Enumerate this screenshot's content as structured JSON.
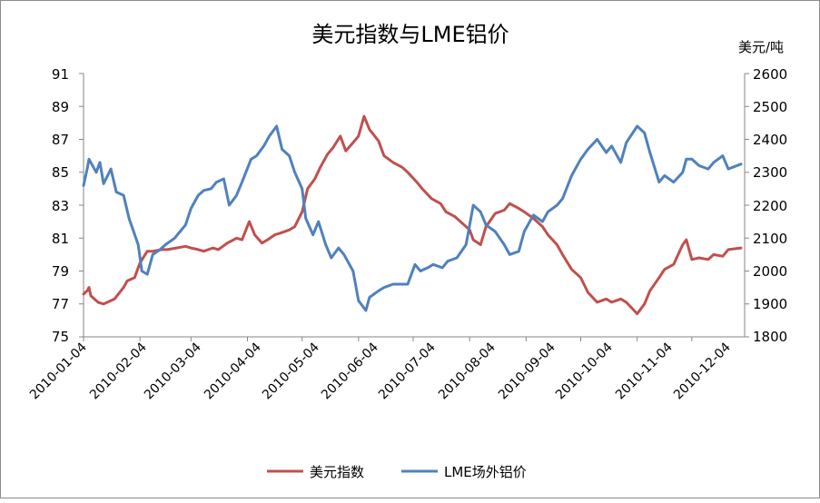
{
  "chart_data": {
    "type": "line",
    "title": "美元指数与LME铝价",
    "y2_unit_label": "美元/吨",
    "y_ticks": [
      "91",
      "89",
      "87",
      "85",
      "83",
      "81",
      "79",
      "77",
      "75"
    ],
    "y2_ticks": [
      "2600",
      "2500",
      "2400",
      "2300",
      "2200",
      "2100",
      "2000",
      "1900",
      "1800"
    ],
    "x_ticks": [
      "2010-01-04",
      "2010-02-04",
      "2010-03-04",
      "2010-04-04",
      "2010-05-04",
      "2010-06-04",
      "2010-07-04",
      "2010-08-04",
      "2010-09-04",
      "2010-10-04",
      "2010-11-04",
      "2010-12-04"
    ],
    "ylim": [
      75,
      91
    ],
    "y2lim": [
      1800,
      2600
    ],
    "grid": false,
    "legend_position": "bottom",
    "series": [
      {
        "name": "美元指数",
        "axis": "left",
        "color": "#c0504d",
        "values": [
          [
            "2010-01-04",
            77.6
          ],
          [
            "2010-01-06",
            77.8
          ],
          [
            "2010-01-07",
            78.0
          ],
          [
            "2010-01-08",
            77.5
          ],
          [
            "2010-01-12",
            77.1
          ],
          [
            "2010-01-15",
            77.0
          ],
          [
            "2010-01-19",
            77.2
          ],
          [
            "2010-01-21",
            77.3
          ],
          [
            "2010-01-26",
            78.0
          ],
          [
            "2010-01-28",
            78.4
          ],
          [
            "2010-02-01",
            78.6
          ],
          [
            "2010-02-04",
            79.5
          ],
          [
            "2010-02-08",
            80.2
          ],
          [
            "2010-02-11",
            80.2
          ],
          [
            "2010-02-16",
            80.3
          ],
          [
            "2010-02-19",
            80.3
          ],
          [
            "2010-02-24",
            80.4
          ],
          [
            "2010-03-01",
            80.5
          ],
          [
            "2010-03-04",
            80.4
          ],
          [
            "2010-03-08",
            80.3
          ],
          [
            "2010-03-11",
            80.2
          ],
          [
            "2010-03-16",
            80.4
          ],
          [
            "2010-03-19",
            80.3
          ],
          [
            "2010-03-24",
            80.7
          ],
          [
            "2010-03-29",
            81.0
          ],
          [
            "2010-04-01",
            80.9
          ],
          [
            "2010-04-05",
            82.0
          ],
          [
            "2010-04-08",
            81.2
          ],
          [
            "2010-04-12",
            80.7
          ],
          [
            "2010-04-15",
            80.9
          ],
          [
            "2010-04-19",
            81.2
          ],
          [
            "2010-04-22",
            81.3
          ],
          [
            "2010-04-27",
            81.5
          ],
          [
            "2010-04-30",
            81.7
          ],
          [
            "2010-05-04",
            82.6
          ],
          [
            "2010-05-07",
            84.0
          ],
          [
            "2010-05-11",
            84.6
          ],
          [
            "2010-05-14",
            85.3
          ],
          [
            "2010-05-18",
            86.1
          ],
          [
            "2010-05-21",
            86.5
          ],
          [
            "2010-05-25",
            87.2
          ],
          [
            "2010-05-28",
            86.3
          ],
          [
            "2010-06-01",
            86.8
          ],
          [
            "2010-06-04",
            87.2
          ],
          [
            "2010-06-07",
            88.4
          ],
          [
            "2010-06-10",
            87.6
          ],
          [
            "2010-06-15",
            86.9
          ],
          [
            "2010-06-18",
            86.0
          ],
          [
            "2010-06-23",
            85.6
          ],
          [
            "2010-06-28",
            85.3
          ],
          [
            "2010-07-01",
            85.0
          ],
          [
            "2010-07-06",
            84.4
          ],
          [
            "2010-07-09",
            84.0
          ],
          [
            "2010-07-14",
            83.4
          ],
          [
            "2010-07-19",
            83.1
          ],
          [
            "2010-07-22",
            82.6
          ],
          [
            "2010-07-27",
            82.3
          ],
          [
            "2010-07-30",
            82.0
          ],
          [
            "2010-08-04",
            81.5
          ],
          [
            "2010-08-06",
            80.9
          ],
          [
            "2010-08-10",
            80.6
          ],
          [
            "2010-08-13",
            81.7
          ],
          [
            "2010-08-18",
            82.5
          ],
          [
            "2010-08-23",
            82.7
          ],
          [
            "2010-08-26",
            83.1
          ],
          [
            "2010-08-31",
            82.8
          ],
          [
            "2010-09-03",
            82.6
          ],
          [
            "2010-09-08",
            82.2
          ],
          [
            "2010-09-13",
            81.7
          ],
          [
            "2010-09-16",
            81.2
          ],
          [
            "2010-09-21",
            80.6
          ],
          [
            "2010-09-24",
            80.0
          ],
          [
            "2010-09-29",
            79.1
          ],
          [
            "2010-10-04",
            78.6
          ],
          [
            "2010-10-08",
            77.7
          ],
          [
            "2010-10-13",
            77.1
          ],
          [
            "2010-10-18",
            77.3
          ],
          [
            "2010-10-21",
            77.1
          ],
          [
            "2010-10-26",
            77.3
          ],
          [
            "2010-10-29",
            77.1
          ],
          [
            "2010-11-04",
            76.4
          ],
          [
            "2010-11-08",
            77.0
          ],
          [
            "2010-11-11",
            77.8
          ],
          [
            "2010-11-16",
            78.6
          ],
          [
            "2010-11-19",
            79.1
          ],
          [
            "2010-11-24",
            79.4
          ],
          [
            "2010-11-29",
            80.6
          ],
          [
            "2010-12-01",
            80.9
          ],
          [
            "2010-12-04",
            79.7
          ],
          [
            "2010-12-08",
            79.8
          ],
          [
            "2010-12-13",
            79.7
          ],
          [
            "2010-12-16",
            80.0
          ],
          [
            "2010-12-21",
            79.9
          ],
          [
            "2010-12-24",
            80.3
          ],
          [
            "2010-12-31",
            80.4
          ]
        ]
      },
      {
        "name": "LME场外铝价",
        "axis": "right",
        "color": "#4f81bd",
        "values": [
          [
            "2010-01-04",
            2260
          ],
          [
            "2010-01-06",
            2310
          ],
          [
            "2010-01-07",
            2340
          ],
          [
            "2010-01-11",
            2300
          ],
          [
            "2010-01-13",
            2330
          ],
          [
            "2010-01-15",
            2265
          ],
          [
            "2010-01-19",
            2310
          ],
          [
            "2010-01-22",
            2240
          ],
          [
            "2010-01-26",
            2230
          ],
          [
            "2010-01-29",
            2160
          ],
          [
            "2010-02-03",
            2080
          ],
          [
            "2010-02-05",
            2000
          ],
          [
            "2010-02-08",
            1990
          ],
          [
            "2010-02-11",
            2050
          ],
          [
            "2010-02-15",
            2065
          ],
          [
            "2010-02-18",
            2080
          ],
          [
            "2010-02-23",
            2100
          ],
          [
            "2010-02-26",
            2120
          ],
          [
            "2010-03-01",
            2140
          ],
          [
            "2010-03-04",
            2190
          ],
          [
            "2010-03-08",
            2230
          ],
          [
            "2010-03-11",
            2245
          ],
          [
            "2010-03-15",
            2250
          ],
          [
            "2010-03-18",
            2270
          ],
          [
            "2010-03-22",
            2280
          ],
          [
            "2010-03-25",
            2200
          ],
          [
            "2010-03-29",
            2230
          ],
          [
            "2010-04-01",
            2270
          ],
          [
            "2010-04-06",
            2340
          ],
          [
            "2010-04-09",
            2350
          ],
          [
            "2010-04-13",
            2380
          ],
          [
            "2010-04-16",
            2410
          ],
          [
            "2010-04-20",
            2440
          ],
          [
            "2010-04-23",
            2370
          ],
          [
            "2010-04-27",
            2350
          ],
          [
            "2010-04-30",
            2300
          ],
          [
            "2010-05-04",
            2250
          ],
          [
            "2010-05-06",
            2160
          ],
          [
            "2010-05-10",
            2110
          ],
          [
            "2010-05-13",
            2150
          ],
          [
            "2010-05-17",
            2080
          ],
          [
            "2010-05-20",
            2040
          ],
          [
            "2010-05-24",
            2070
          ],
          [
            "2010-05-27",
            2050
          ],
          [
            "2010-06-01",
            2000
          ],
          [
            "2010-06-04",
            1910
          ],
          [
            "2010-06-08",
            1880
          ],
          [
            "2010-06-10",
            1920
          ],
          [
            "2010-06-15",
            1940
          ],
          [
            "2010-06-18",
            1950
          ],
          [
            "2010-06-23",
            1960
          ],
          [
            "2010-06-28",
            1960
          ],
          [
            "2010-07-01",
            1960
          ],
          [
            "2010-07-05",
            2020
          ],
          [
            "2010-07-08",
            2000
          ],
          [
            "2010-07-12",
            2010
          ],
          [
            "2010-07-15",
            2020
          ],
          [
            "2010-07-20",
            2010
          ],
          [
            "2010-07-23",
            2030
          ],
          [
            "2010-07-28",
            2040
          ],
          [
            "2010-08-02",
            2080
          ],
          [
            "2010-08-04",
            2140
          ],
          [
            "2010-08-06",
            2200
          ],
          [
            "2010-08-10",
            2180
          ],
          [
            "2010-08-13",
            2140
          ],
          [
            "2010-08-18",
            2120
          ],
          [
            "2010-08-23",
            2080
          ],
          [
            "2010-08-26",
            2050
          ],
          [
            "2010-08-31",
            2060
          ],
          [
            "2010-09-03",
            2120
          ],
          [
            "2010-09-08",
            2170
          ],
          [
            "2010-09-13",
            2150
          ],
          [
            "2010-09-16",
            2180
          ],
          [
            "2010-09-21",
            2200
          ],
          [
            "2010-09-24",
            2220
          ],
          [
            "2010-09-29",
            2290
          ],
          [
            "2010-10-04",
            2340
          ],
          [
            "2010-10-08",
            2370
          ],
          [
            "2010-10-13",
            2400
          ],
          [
            "2010-10-18",
            2360
          ],
          [
            "2010-10-21",
            2380
          ],
          [
            "2010-10-26",
            2330
          ],
          [
            "2010-10-29",
            2390
          ],
          [
            "2010-11-04",
            2440
          ],
          [
            "2010-11-08",
            2420
          ],
          [
            "2010-11-11",
            2360
          ],
          [
            "2010-11-16",
            2270
          ],
          [
            "2010-11-19",
            2290
          ],
          [
            "2010-11-24",
            2270
          ],
          [
            "2010-11-29",
            2300
          ],
          [
            "2010-12-01",
            2340
          ],
          [
            "2010-12-04",
            2340
          ],
          [
            "2010-12-08",
            2320
          ],
          [
            "2010-12-13",
            2310
          ],
          [
            "2010-12-16",
            2330
          ],
          [
            "2010-12-21",
            2350
          ],
          [
            "2010-12-24",
            2310
          ],
          [
            "2010-12-31",
            2325
          ]
        ]
      }
    ]
  }
}
